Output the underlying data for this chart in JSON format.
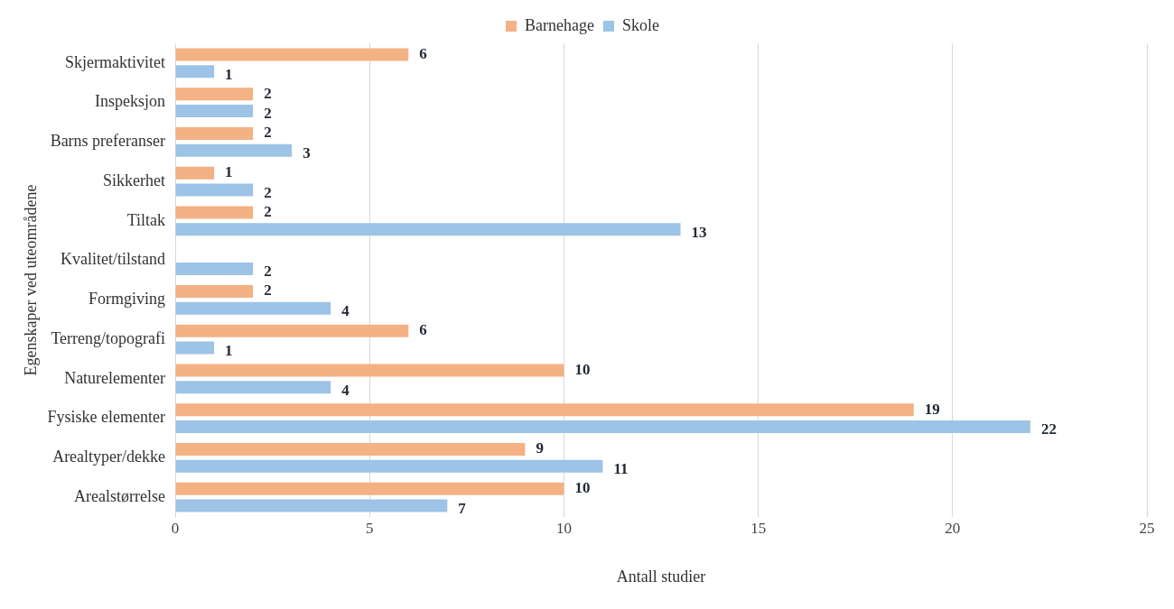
{
  "chart_data": {
    "type": "bar",
    "orientation": "horizontal",
    "xlabel": "Antall studier",
    "ylabel": "Egenskaper ved uteområdene",
    "categories": [
      "Skjermaktivitet",
      "Inspeksjon",
      "Barns preferanser",
      "Sikkerhet",
      "Tiltak",
      "Kvalitet/tilstand",
      "Formgiving",
      "Terreng/topografi",
      "Naturelementer",
      "Fysiske elementer",
      "Arealtyper/dekke",
      "Arealstørrelse"
    ],
    "series": [
      {
        "name": "Barnehage",
        "color": "#f4b183",
        "values": [
          6,
          2,
          2,
          1,
          2,
          null,
          2,
          6,
          10,
          19,
          9,
          10
        ]
      },
      {
        "name": "Skole",
        "color": "#9dc3e6",
        "values": [
          1,
          2,
          3,
          2,
          13,
          2,
          4,
          1,
          4,
          22,
          11,
          7
        ]
      }
    ],
    "xlim": [
      0,
      25
    ],
    "xticks": [
      0,
      5,
      10,
      15,
      20,
      25
    ],
    "grid": "x",
    "legend": "top",
    "data_labels": true
  }
}
